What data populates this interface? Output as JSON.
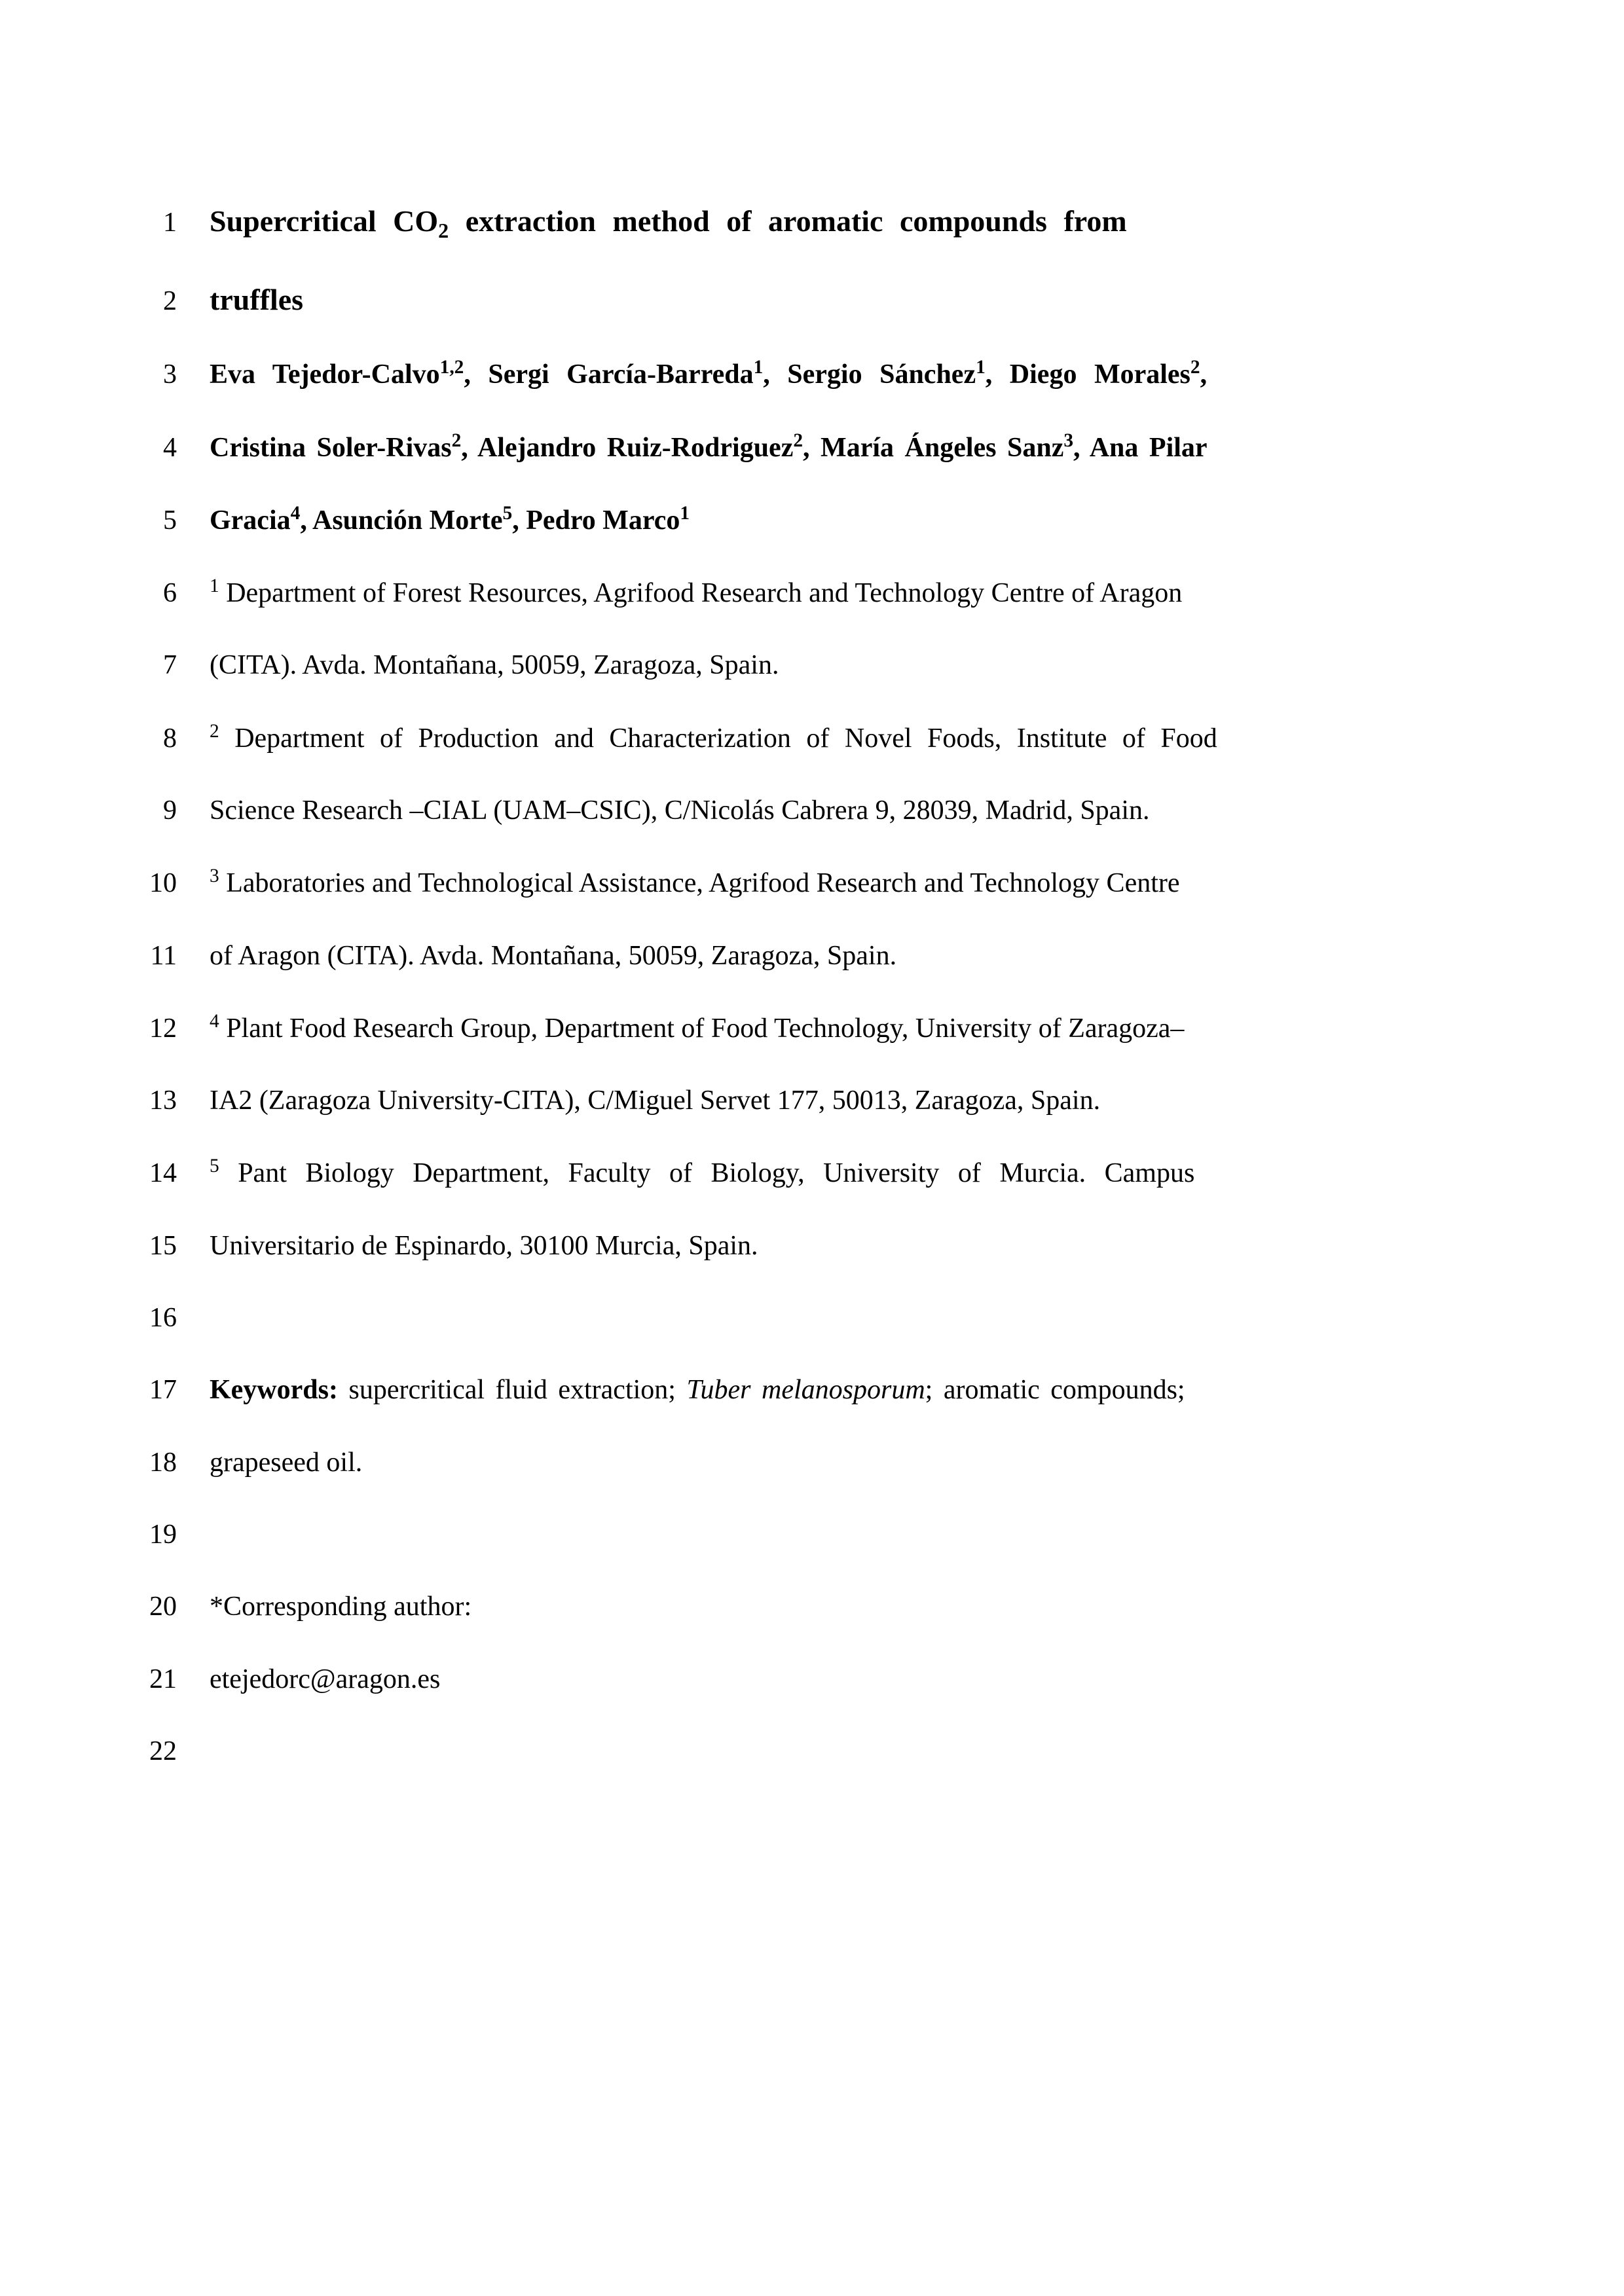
{
  "manuscript": {
    "line_numbers": [
      "1",
      "2",
      "3",
      "4",
      "5",
      "6",
      "7",
      "8",
      "9",
      "10",
      "11",
      "12",
      "13",
      "14",
      "15",
      "16",
      "17",
      "18",
      "19",
      "20",
      "21",
      "22"
    ],
    "title_line1": "Supercritical CO",
    "title_sub": "2",
    "title_line1b": " extraction method of aromatic compounds from",
    "title_line2": "truffles",
    "authors": {
      "line3_parts": [
        {
          "text": "Eva Tejedor-Calvo",
          "bold": true
        },
        {
          "text": "1,2",
          "sup": true,
          "bold": true
        },
        {
          "text": ", Sergi García-Barreda",
          "bold": true
        },
        {
          "text": "1",
          "sup": true,
          "bold": true
        },
        {
          "text": ", Sergio Sánchez",
          "bold": true
        },
        {
          "text": "1",
          "sup": true,
          "bold": true
        },
        {
          "text": ", Diego Morales",
          "bold": true
        },
        {
          "text": "2",
          "sup": true,
          "bold": true
        },
        {
          "text": ",",
          "bold": true
        }
      ],
      "line4_parts": [
        {
          "text": "Cristina Soler-Rivas",
          "bold": true
        },
        {
          "text": "2",
          "sup": true,
          "bold": true
        },
        {
          "text": ", Alejandro Ruiz-Rodriguez",
          "bold": true
        },
        {
          "text": "2",
          "sup": true,
          "bold": true
        },
        {
          "text": ", María Ángeles Sanz",
          "bold": true
        },
        {
          "text": "3",
          "sup": true,
          "bold": true
        },
        {
          "text": ", Ana Pilar",
          "bold": true
        }
      ],
      "line5_parts": [
        {
          "text": "Gracia",
          "bold": true
        },
        {
          "text": "4",
          "sup": true,
          "bold": true
        },
        {
          "text": ", Asunción Morte",
          "bold": true
        },
        {
          "text": "5",
          "sup": true,
          "bold": true
        },
        {
          "text": ", Pedro Marco",
          "bold": true
        },
        {
          "text": "1",
          "sup": true,
          "bold": true
        }
      ]
    },
    "affiliations": {
      "line6": {
        "sup": "1",
        "text": " Department of Forest Resources, Agrifood Research and Technology Centre of Aragon"
      },
      "line7": "(CITA). Avda. Montañana, 50059, Zaragoza, Spain.",
      "line8": {
        "sup": "2",
        "text": " Department of Production and Characterization of Novel Foods, Institute of Food"
      },
      "line9": "Science Research –CIAL (UAM–CSIC), C/Nicolás Cabrera 9, 28039, Madrid, Spain.",
      "line10": {
        "sup": "3",
        "text": " Laboratories and Technological Assistance, Agrifood Research and Technology Centre"
      },
      "line11": "of Aragon (CITA). Avda. Montañana, 50059, Zaragoza, Spain.",
      "line12": {
        "sup": "4",
        "text": " Plant Food Research Group, Department of Food Technology, University of Zaragoza–"
      },
      "line13": "IA2 (Zaragoza University-CITA), C/Miguel Servet 177, 50013, Zaragoza, Spain.",
      "line14": {
        "sup": "5",
        "text": " Pant Biology Department, Faculty of Biology, University of Murcia. Campus"
      },
      "line15": "Universitario de Espinardo, 30100 Murcia, Spain."
    },
    "keywords": {
      "label": "Keywords:",
      "text_part1": " supercritical fluid extraction; ",
      "italic": "Tuber melanosporum",
      "text_part2": "; aromatic compounds;",
      "line18": "grapeseed oil."
    },
    "corresponding": {
      "label": "*Corresponding author:",
      "email": "etejedorc@aragon.es"
    },
    "style": {
      "page_bg": "#ffffff",
      "text_color": "#000000",
      "font_family": "Times New Roman",
      "base_fontsize_pt": 12,
      "title_fontsize_pt": 13,
      "line_spacing": 2.0
    }
  }
}
